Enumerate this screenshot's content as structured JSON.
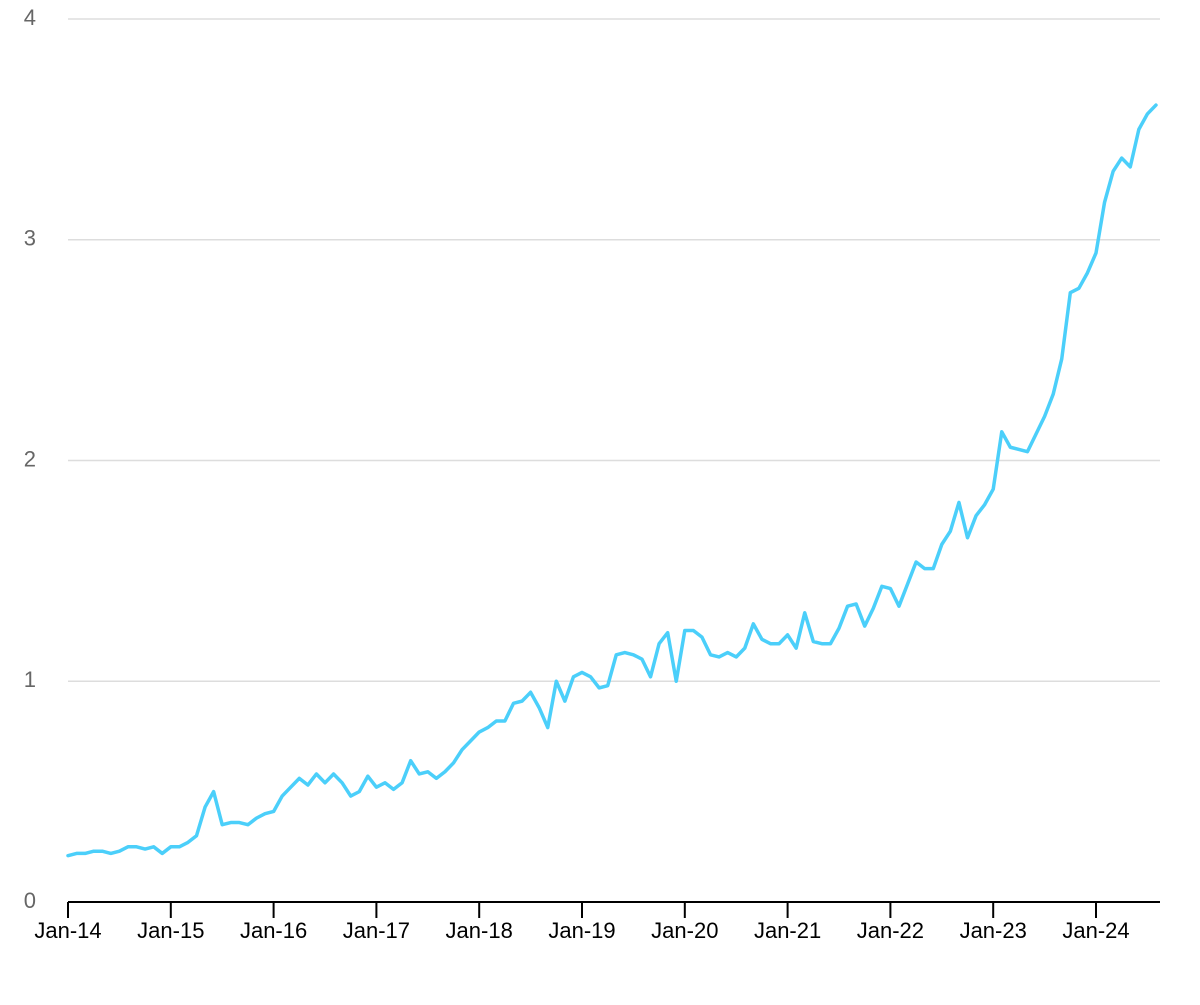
{
  "chart_data": {
    "type": "line",
    "categories": [
      "Jan-14",
      null,
      null,
      null,
      null,
      null,
      null,
      null,
      null,
      null,
      null,
      null,
      "Jan-15",
      null,
      null,
      null,
      null,
      null,
      null,
      null,
      null,
      null,
      null,
      null,
      "Jan-16",
      null,
      null,
      null,
      null,
      null,
      null,
      null,
      null,
      null,
      null,
      null,
      "Jan-17",
      null,
      null,
      null,
      null,
      null,
      null,
      null,
      null,
      null,
      null,
      null,
      "Jan-18",
      null,
      null,
      null,
      null,
      null,
      null,
      null,
      null,
      null,
      null,
      null,
      "Jan-19",
      null,
      null,
      null,
      null,
      null,
      null,
      null,
      null,
      null,
      null,
      null,
      "Jan-20",
      null,
      null,
      null,
      null,
      null,
      null,
      null,
      null,
      null,
      null,
      null,
      "Jan-21",
      null,
      null,
      null,
      null,
      null,
      null,
      null,
      null,
      null,
      null,
      null,
      "Jan-22",
      null,
      null,
      null,
      null,
      null,
      null,
      null,
      null,
      null,
      null,
      null,
      "Jan-23",
      null,
      null,
      null,
      null,
      null,
      null,
      null,
      null,
      null,
      null,
      null,
      "Jan-24",
      null,
      null,
      null,
      null,
      null,
      null,
      null
    ],
    "series": [
      {
        "color": "#4bcffa",
        "values": [
          0.21,
          0.22,
          0.22,
          0.23,
          0.23,
          0.22,
          0.23,
          0.25,
          0.25,
          0.24,
          0.25,
          0.22,
          0.25,
          0.25,
          0.27,
          0.3,
          0.43,
          0.5,
          0.35,
          0.36,
          0.36,
          0.35,
          0.38,
          0.4,
          0.41,
          0.48,
          0.52,
          0.56,
          0.53,
          0.58,
          0.54,
          0.58,
          0.54,
          0.48,
          0.5,
          0.57,
          0.52,
          0.54,
          0.51,
          0.54,
          0.64,
          0.58,
          0.59,
          0.56,
          0.59,
          0.63,
          0.69,
          0.73,
          0.77,
          0.79,
          0.82,
          0.82,
          0.9,
          0.91,
          0.95,
          0.88,
          0.79,
          1.0,
          0.91,
          1.02,
          1.04,
          1.02,
          0.97,
          0.98,
          1.12,
          1.13,
          1.12,
          1.1,
          1.02,
          1.17,
          1.22,
          1.0,
          1.23,
          1.23,
          1.2,
          1.12,
          1.11,
          1.13,
          1.11,
          1.15,
          1.26,
          1.19,
          1.17,
          1.17,
          1.21,
          1.15,
          1.31,
          1.18,
          1.17,
          1.17,
          1.24,
          1.34,
          1.35,
          1.25,
          1.33,
          1.43,
          1.42,
          1.34,
          1.44,
          1.54,
          1.51,
          1.51,
          1.62,
          1.68,
          1.81,
          1.65,
          1.75,
          1.8,
          1.87,
          2.13,
          2.06,
          2.05,
          2.04,
          2.12,
          2.2,
          2.3,
          2.46,
          2.76,
          2.78,
          2.85,
          2.94,
          3.17,
          3.31,
          3.37,
          3.33,
          3.5,
          3.57,
          3.61
        ]
      }
    ],
    "ylim": [
      0,
      4
    ],
    "yticks": [
      0,
      1,
      2,
      3,
      4
    ],
    "grid": true
  }
}
